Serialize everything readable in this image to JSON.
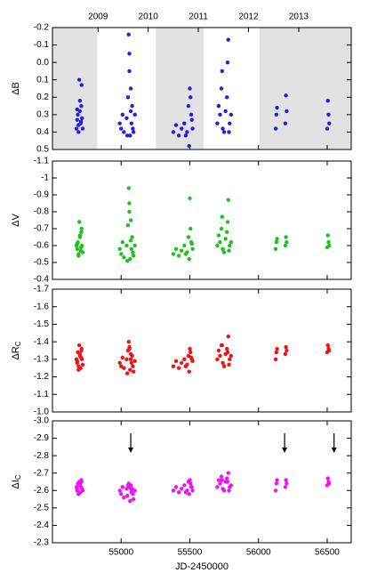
{
  "chart_data": [
    {
      "type": "scatter",
      "ylabel": "ΔB",
      "color": "#1f1fe6",
      "xlim": [
        54500,
        56675
      ],
      "xticks": [
        55000,
        55500,
        56000,
        56500
      ],
      "ylim": [
        0.5,
        -0.2
      ],
      "yticks": [
        -0.2,
        -0.1,
        {
          "value": 0,
          "label": "0.0"
        },
        0.1,
        0.2,
        0.3,
        0.4,
        0.5
      ],
      "top_ticks": [
        {
          "value": 54832,
          "label": "2009"
        },
        {
          "value": 55197,
          "label": "2010"
        },
        {
          "value": 55562,
          "label": "2011"
        },
        {
          "value": 55927,
          "label": "2012"
        },
        {
          "value": 56293,
          "label": "2013"
        }
      ],
      "shaded": [
        [
          54500,
          54826
        ],
        [
          55253,
          55600
        ],
        [
          56006,
          56675
        ]
      ],
      "shade_color": "#e2e2e2",
      "x": [
        54675,
        54680,
        54685,
        54690,
        54695,
        54700,
        54705,
        54710,
        54715,
        54720,
        54690,
        54700,
        54712,
        54680,
        54708,
        54990,
        55000,
        55010,
        55020,
        55040,
        55050,
        55055,
        55060,
        55065,
        55070,
        55075,
        55080,
        55090,
        55100,
        55060,
        55070,
        55085,
        55045,
        55380,
        55400,
        55420,
        55440,
        55460,
        55480,
        55490,
        55500,
        55510,
        55520,
        55495,
        55505,
        55515,
        55470,
        55700,
        55710,
        55720,
        55730,
        55740,
        55750,
        55760,
        55770,
        55780,
        55790,
        55800,
        55735,
        55775,
        55785,
        56125,
        56130,
        56135,
        56195,
        56200,
        56205,
        56500,
        56505,
        56510,
        56515
      ],
      "values": [
        0.38,
        0.33,
        0.3,
        0.36,
        0.1,
        0.28,
        0.35,
        0.25,
        0.32,
        0.38,
        0.4,
        0.22,
        0.13,
        0.27,
        0.34,
        0.35,
        0.38,
        0.3,
        0.4,
        0.32,
        0.2,
        -0.16,
        0.05,
        0.42,
        0.15,
        0.35,
        0.25,
        0.4,
        0.3,
        -0.05,
        0.28,
        0.38,
        0.42,
        0.4,
        0.36,
        0.42,
        0.38,
        0.35,
        0.4,
        0.25,
        0.15,
        0.3,
        0.38,
        0.48,
        0.2,
        0.33,
        0.42,
        0.35,
        0.25,
        0.3,
        0.15,
        0.38,
        0.4,
        0.28,
        0.2,
        -0.13,
        0.35,
        0.3,
        0.05,
        0.0,
        0.4,
        0.38,
        0.3,
        0.26,
        0.35,
        0.19,
        0.28,
        0.38,
        0.22,
        0.3,
        0.35
      ]
    },
    {
      "type": "scatter",
      "ylabel": "ΔV",
      "color": "#1ec21e",
      "xlim": [
        54500,
        56675
      ],
      "xticks": [
        55000,
        55500,
        56000,
        56500
      ],
      "ylim": [
        -0.4,
        -1.1
      ],
      "yticks": [
        -1.1,
        -1.0,
        -0.9,
        -0.8,
        -0.7,
        -0.6,
        -0.5,
        -0.4
      ],
      "x": [
        54675,
        54680,
        54685,
        54690,
        54695,
        54700,
        54705,
        54710,
        54715,
        54720,
        54690,
        54700,
        54712,
        54680,
        54708,
        54990,
        55000,
        55010,
        55020,
        55040,
        55050,
        55055,
        55060,
        55065,
        55070,
        55075,
        55080,
        55090,
        55100,
        55060,
        55070,
        55085,
        55045,
        55380,
        55400,
        55420,
        55440,
        55460,
        55480,
        55490,
        55500,
        55510,
        55520,
        55495,
        55505,
        55515,
        55470,
        55700,
        55710,
        55720,
        55730,
        55740,
        55750,
        55760,
        55770,
        55780,
        55790,
        55800,
        55735,
        55775,
        55785,
        56125,
        56130,
        56135,
        56195,
        56200,
        56205,
        56500,
        56505,
        56510,
        56515
      ],
      "values": [
        -0.6,
        -0.58,
        -0.62,
        -0.55,
        -0.74,
        -0.65,
        -0.57,
        -0.68,
        -0.6,
        -0.56,
        -0.54,
        -0.66,
        -0.7,
        -0.61,
        -0.59,
        -0.58,
        -0.55,
        -0.62,
        -0.53,
        -0.6,
        -0.72,
        -0.94,
        -0.85,
        -0.52,
        -0.75,
        -0.58,
        -0.65,
        -0.54,
        -0.6,
        -0.8,
        -0.63,
        -0.56,
        -0.51,
        -0.55,
        -0.58,
        -0.54,
        -0.57,
        -0.6,
        -0.56,
        -0.65,
        -0.88,
        -0.62,
        -0.58,
        -0.52,
        -0.7,
        -0.61,
        -0.55,
        -0.6,
        -0.66,
        -0.62,
        -0.7,
        -0.58,
        -0.56,
        -0.64,
        -0.68,
        -0.87,
        -0.6,
        -0.62,
        -0.77,
        -0.74,
        -0.57,
        -0.58,
        -0.62,
        -0.64,
        -0.6,
        -0.65,
        -0.62,
        -0.59,
        -0.66,
        -0.62,
        -0.6
      ]
    },
    {
      "type": "scatter",
      "ylabel": "ΔR",
      "ylabel_sub": "C",
      "color": "#ee1414",
      "xlim": [
        54500,
        56675
      ],
      "xticks": [
        55000,
        55500,
        56000,
        56500
      ],
      "ylim": [
        -1,
        -1.7
      ],
      "yticks": [
        -1.7,
        -1.6,
        -1.5,
        -1.4,
        -1.3,
        -1.2,
        -1.1,
        {
          "value": -1,
          "label": "-1.0"
        }
      ],
      "x": [
        54675,
        54680,
        54685,
        54690,
        54695,
        54700,
        54705,
        54710,
        54715,
        54720,
        54690,
        54700,
        54712,
        54680,
        54708,
        54990,
        55000,
        55010,
        55020,
        55040,
        55050,
        55055,
        55060,
        55065,
        55070,
        55075,
        55080,
        55090,
        55100,
        55060,
        55070,
        55085,
        55045,
        55380,
        55400,
        55420,
        55440,
        55460,
        55480,
        55490,
        55500,
        55510,
        55520,
        55495,
        55505,
        55515,
        55470,
        55700,
        55710,
        55720,
        55730,
        55740,
        55750,
        55760,
        55770,
        55780,
        55790,
        55800,
        55735,
        55775,
        55785,
        56125,
        56130,
        56135,
        56195,
        56200,
        56205,
        56500,
        56505,
        56510,
        56515
      ],
      "values": [
        -1.3,
        -1.28,
        -1.34,
        -1.26,
        -1.38,
        -1.32,
        -1.25,
        -1.35,
        -1.3,
        -1.27,
        -1.24,
        -1.33,
        -1.36,
        -1.29,
        -1.31,
        -1.28,
        -1.26,
        -1.31,
        -1.25,
        -1.3,
        -1.35,
        -1.4,
        -1.37,
        -1.24,
        -1.33,
        -1.28,
        -1.32,
        -1.23,
        -1.29,
        -1.36,
        -1.3,
        -1.26,
        -1.22,
        -1.26,
        -1.29,
        -1.25,
        -1.28,
        -1.3,
        -1.27,
        -1.32,
        -1.36,
        -1.31,
        -1.29,
        -1.23,
        -1.34,
        -1.3,
        -1.26,
        -1.3,
        -1.35,
        -1.32,
        -1.38,
        -1.28,
        -1.26,
        -1.33,
        -1.36,
        -1.43,
        -1.3,
        -1.32,
        -1.38,
        -1.34,
        -1.27,
        -1.3,
        -1.34,
        -1.36,
        -1.33,
        -1.37,
        -1.35,
        -1.34,
        -1.38,
        -1.36,
        -1.35
      ]
    },
    {
      "type": "scatter",
      "ylabel": "ΔI",
      "ylabel_sub": "C",
      "color": "#ee14ee",
      "xlabel": "JD-2450000",
      "xlim": [
        54500,
        56675
      ],
      "xticks": [
        55000,
        55500,
        56000,
        56500
      ],
      "ylim": [
        -2.3,
        -3
      ],
      "yticks": [
        {
          "value": -3,
          "label": "-3.0"
        },
        -2.9,
        -2.8,
        -2.7,
        -2.6,
        -2.5,
        -2.4,
        -2.3
      ],
      "arrows": [
        55070,
        56190,
        56550
      ],
      "x": [
        54675,
        54680,
        54685,
        54690,
        54695,
        54700,
        54705,
        54710,
        54715,
        54720,
        54690,
        54700,
        54712,
        54680,
        54708,
        54990,
        55000,
        55010,
        55020,
        55040,
        55050,
        55055,
        55060,
        55065,
        55070,
        55075,
        55080,
        55090,
        55100,
        55060,
        55070,
        55085,
        55045,
        55380,
        55400,
        55420,
        55440,
        55460,
        55480,
        55490,
        55500,
        55510,
        55520,
        55495,
        55505,
        55515,
        55470,
        55700,
        55710,
        55720,
        55730,
        55740,
        55750,
        55760,
        55770,
        55780,
        55790,
        55800,
        55735,
        55775,
        55785,
        56125,
        56130,
        56135,
        56195,
        56200,
        56205,
        56500,
        56505,
        56510,
        56515
      ],
      "values": [
        -2.62,
        -2.6,
        -2.64,
        -2.58,
        -2.65,
        -2.63,
        -2.59,
        -2.66,
        -2.61,
        -2.6,
        -2.58,
        -2.64,
        -2.65,
        -2.61,
        -2.62,
        -2.6,
        -2.58,
        -2.62,
        -2.56,
        -2.61,
        -2.63,
        -2.64,
        -2.62,
        -2.54,
        -2.63,
        -2.59,
        -2.61,
        -2.55,
        -2.6,
        -2.63,
        -2.61,
        -2.58,
        -2.57,
        -2.6,
        -2.62,
        -2.59,
        -2.61,
        -2.63,
        -2.6,
        -2.65,
        -2.66,
        -2.62,
        -2.6,
        -2.58,
        -2.64,
        -2.62,
        -2.59,
        -2.62,
        -2.66,
        -2.64,
        -2.68,
        -2.61,
        -2.6,
        -2.65,
        -2.67,
        -2.7,
        -2.62,
        -2.63,
        -2.66,
        -2.65,
        -2.6,
        -2.6,
        -2.64,
        -2.66,
        -2.62,
        -2.66,
        -2.64,
        -2.63,
        -2.67,
        -2.65,
        -2.64
      ]
    }
  ]
}
